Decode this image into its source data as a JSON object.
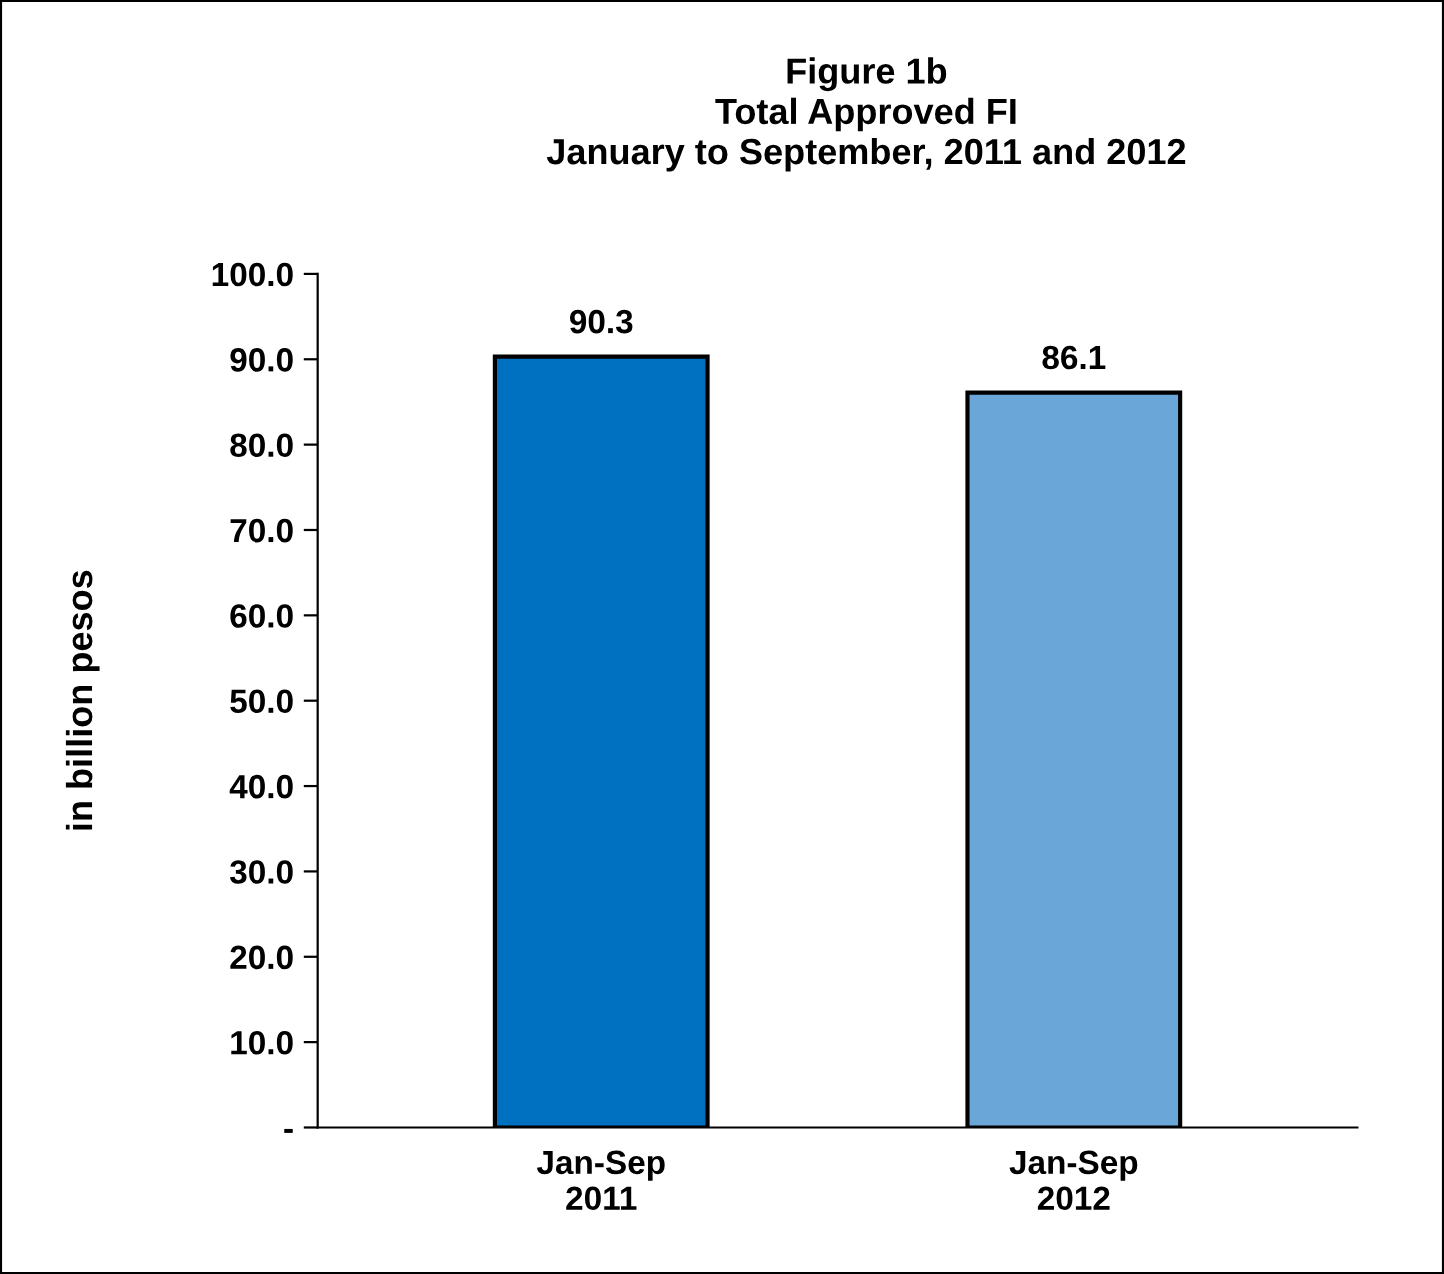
{
  "chart_data": {
    "type": "bar",
    "title": "Figure 1b\nTotal Approved FI\nJanuary to September, 2011 and 2012",
    "ylabel": "in billion pesos",
    "categories": [
      "Jan-Sep\n2011",
      "Jan-Sep\n2012"
    ],
    "values": [
      90.3,
      86.1
    ],
    "colors": [
      "#0070c0",
      "#6aa6d8"
    ],
    "ylim": [
      0,
      100
    ],
    "yticks": [
      {
        "value": 0,
        "label": "-"
      },
      {
        "value": 10,
        "label": "10.0"
      },
      {
        "value": 20,
        "label": "20.0"
      },
      {
        "value": 30,
        "label": "30.0"
      },
      {
        "value": 40,
        "label": "40.0"
      },
      {
        "value": 50,
        "label": "50.0"
      },
      {
        "value": 60,
        "label": "60.0"
      },
      {
        "value": 70,
        "label": "70.0"
      },
      {
        "value": 80,
        "label": "80.0"
      },
      {
        "value": 90,
        "label": "90.0"
      },
      {
        "value": 100,
        "label": "100.0"
      }
    ],
    "data_labels": true,
    "grid": false,
    "legend": false
  }
}
